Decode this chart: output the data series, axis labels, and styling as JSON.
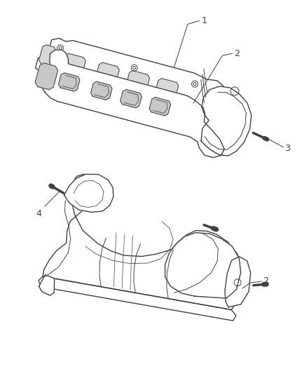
{
  "background_color": "#ffffff",
  "line_color": "#404040",
  "label_color": "#404040",
  "fig_width": 4.38,
  "fig_height": 5.33,
  "dpi": 100
}
